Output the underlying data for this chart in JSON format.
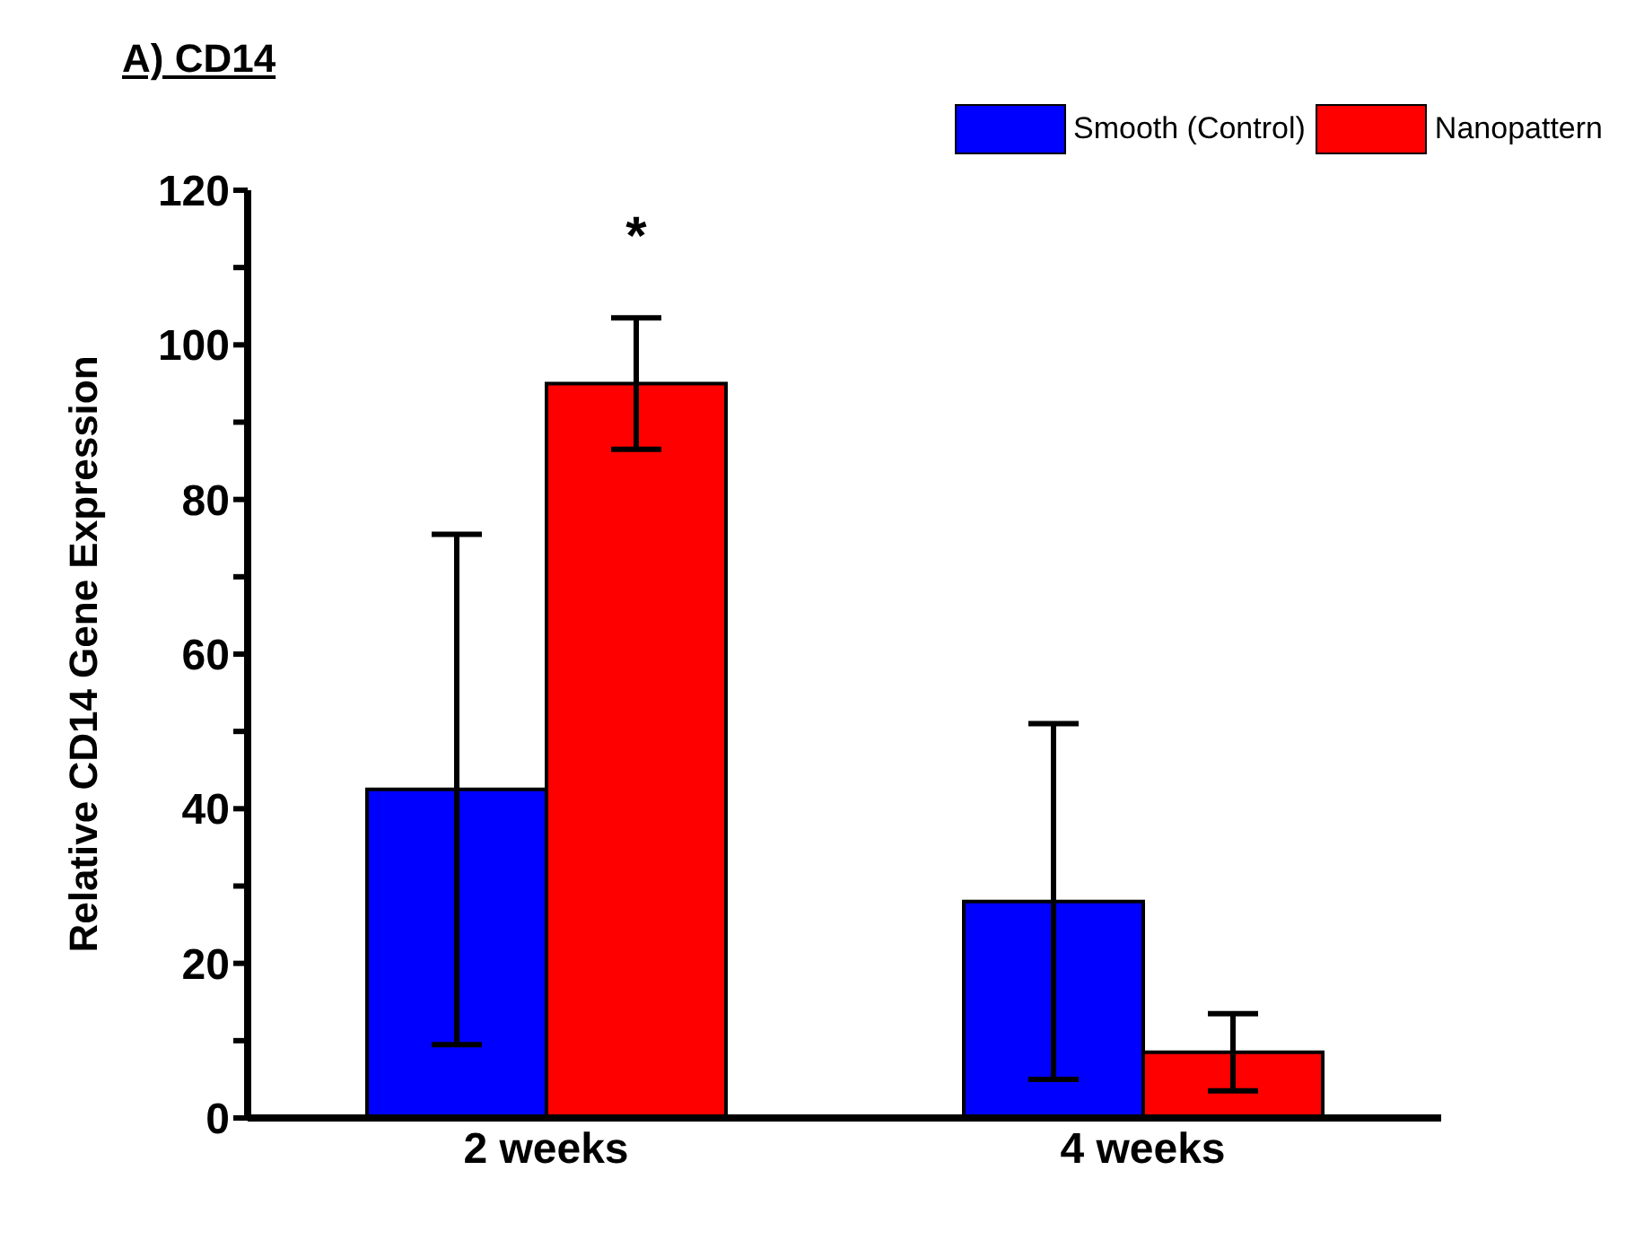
{
  "chart_data": {
    "type": "bar",
    "title": "A) CD14",
    "ylabel": "Relative CD14 Gene Expression",
    "categories": [
      "2 weeks",
      "4 weeks"
    ],
    "series": [
      {
        "name": "Smooth (Control)",
        "color": "#0000ff",
        "values": [
          42.5,
          28
        ],
        "errors": [
          33,
          23
        ]
      },
      {
        "name": "Nanopattern",
        "color": "#ff0000",
        "values": [
          95,
          8.5
        ],
        "errors": [
          8.5,
          5
        ]
      }
    ],
    "ylim": [
      0,
      120
    ],
    "yticks": [
      0,
      {
        "value": 10,
        "label": null
      },
      20,
      {
        "value": 30,
        "label": null
      },
      40,
      {
        "value": 50,
        "label": null
      },
      60,
      {
        "value": 70,
        "label": null
      },
      80,
      {
        "value": 90,
        "label": null
      },
      100,
      {
        "value": 110,
        "label": null
      },
      120
    ],
    "annotations": [
      "*"
    ],
    "legend": "top right",
    "grid": false
  }
}
